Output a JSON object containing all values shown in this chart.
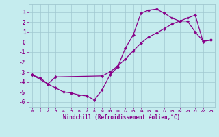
{
  "xlabel": "Windchill (Refroidissement éolien,°C)",
  "xlim": [
    -0.5,
    23.5
  ],
  "ylim": [
    -6.5,
    3.8
  ],
  "xticks": [
    0,
    1,
    2,
    3,
    4,
    5,
    6,
    7,
    8,
    9,
    10,
    11,
    12,
    13,
    14,
    15,
    16,
    17,
    18,
    19,
    20,
    21,
    22,
    23
  ],
  "yticks": [
    -6,
    -5,
    -4,
    -3,
    -2,
    -1,
    0,
    1,
    2,
    3
  ],
  "bg_color": "#c5ecee",
  "line_color": "#880088",
  "grid_color": "#a0c8d0",
  "line1_x": [
    0,
    1,
    2,
    3,
    4,
    5,
    6,
    7,
    8,
    9,
    10,
    11,
    12,
    13,
    14,
    15,
    16,
    17,
    18,
    19,
    20,
    21,
    22,
    23
  ],
  "line1_y": [
    -3.3,
    -3.6,
    -4.2,
    -4.6,
    -5.0,
    -5.1,
    -5.3,
    -5.4,
    -5.8,
    -4.8,
    -3.3,
    -2.5,
    -0.6,
    0.7,
    2.9,
    3.2,
    3.3,
    2.9,
    2.4,
    2.1,
    2.1,
    1.0,
    0.1,
    0.2
  ],
  "line2_x": [
    0,
    2,
    3,
    9,
    10,
    11,
    12,
    13,
    14,
    15,
    16,
    17,
    18,
    19,
    20,
    21,
    22,
    23
  ],
  "line2_y": [
    -3.3,
    -4.2,
    -3.5,
    -3.4,
    -3.0,
    -2.4,
    -1.7,
    -0.9,
    -0.1,
    0.5,
    0.9,
    1.35,
    1.8,
    2.1,
    2.4,
    2.7,
    0.05,
    0.2
  ]
}
